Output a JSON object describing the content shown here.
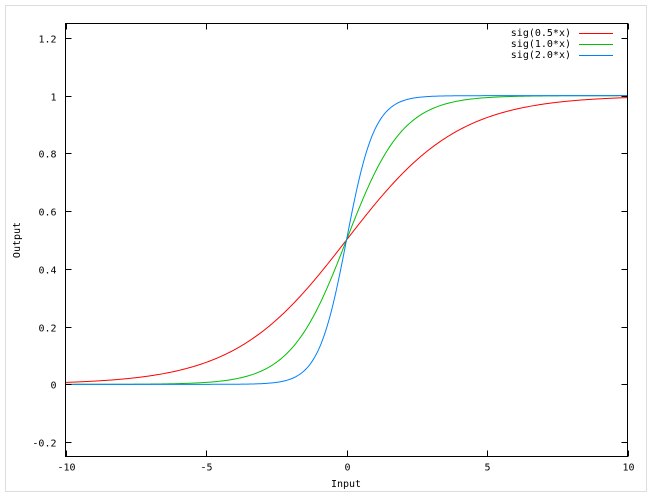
{
  "chart_data": {
    "type": "line",
    "title": "",
    "xlabel": "Input",
    "ylabel": "Output",
    "xlim": [
      -10,
      10
    ],
    "ylim": [
      -0.25,
      1.25
    ],
    "xticks": [
      -10,
      -5,
      0,
      5,
      10
    ],
    "yticks": [
      -0.2,
      0,
      0.2,
      0.4,
      0.6,
      0.8,
      1,
      1.2
    ],
    "xtick_labels": [
      "-10",
      "-5",
      "0",
      "5",
      "10"
    ],
    "ytick_labels": [
      "-0.2",
      "0",
      "0.2",
      "0.4",
      "0.6",
      "0.8",
      "1",
      "1.2"
    ],
    "grid": false,
    "legend_position": "top-right",
    "x": [
      -10,
      -9,
      -8,
      -7,
      -6,
      -5,
      -4,
      -3,
      -2,
      -1,
      0,
      1,
      2,
      3,
      4,
      5,
      6,
      7,
      8,
      9,
      10
    ],
    "series": [
      {
        "name": "sig(0.5*x)",
        "k": 0.5,
        "color": "#ff0000",
        "values": [
          0.0067,
          0.011,
          0.018,
          0.0293,
          0.0474,
          0.0759,
          0.1192,
          0.1824,
          0.2689,
          0.3775,
          0.5,
          0.6225,
          0.7311,
          0.8176,
          0.8808,
          0.9241,
          0.9526,
          0.9707,
          0.982,
          0.989,
          0.9933
        ]
      },
      {
        "name": "sig(1.0*x)",
        "k": 1.0,
        "color": "#00c000",
        "values": [
          0.0,
          0.0001,
          0.0003,
          0.0009,
          0.0025,
          0.0067,
          0.018,
          0.0474,
          0.1192,
          0.2689,
          0.5,
          0.7311,
          0.8808,
          0.9526,
          0.982,
          0.9933,
          0.9975,
          0.9991,
          0.9997,
          0.9999,
          1.0
        ]
      },
      {
        "name": "sig(2.0*x)",
        "k": 2.0,
        "color": "#0080ff",
        "values": [
          0,
          0,
          0,
          0,
          0,
          0,
          0.0003,
          0.0025,
          0.018,
          0.1192,
          0.5,
          0.8808,
          0.982,
          0.9975,
          0.9997,
          1,
          1,
          1,
          1,
          1,
          1
        ]
      }
    ]
  }
}
